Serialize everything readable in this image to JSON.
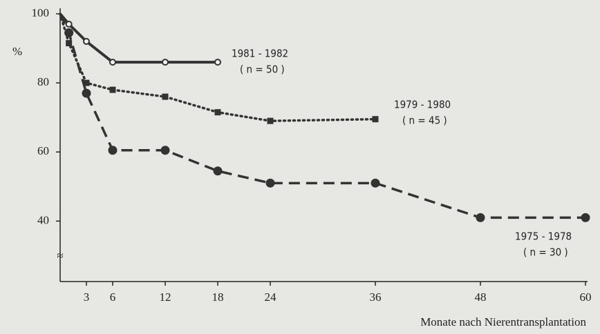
{
  "chart_data": {
    "type": "line",
    "y_label": "%",
    "x_label": "Monate nach Nierentransplantation",
    "y_axis_break": "≈",
    "xlim": [
      0,
      60
    ],
    "xticks": [
      3,
      6,
      12,
      18,
      24,
      36,
      48,
      60
    ],
    "ylim": [
      22.5,
      100
    ],
    "yticks": [
      40,
      60,
      80,
      100
    ],
    "series": [
      {
        "name": "1981 - 1982",
        "n_label": "( n = 50 )",
        "color": "#333333",
        "line_style": "solid",
        "marker": "circle-open",
        "x": [
          0,
          1,
          3,
          6,
          12,
          18
        ],
        "values": [
          100,
          97,
          92,
          86,
          86,
          86
        ]
      },
      {
        "name": "1979 - 1980",
        "n_label": "( n = 45 )",
        "color": "#333333",
        "line_style": "dotted",
        "marker": "square",
        "x": [
          0,
          1,
          3,
          6,
          12,
          18,
          24,
          36
        ],
        "values": [
          100,
          91.5,
          80,
          78,
          76,
          71.5,
          69,
          69.5
        ]
      },
      {
        "name": "1975 - 1978",
        "n_label": "( n = 30 )",
        "color": "#333333",
        "line_style": "dashed",
        "marker": "circle",
        "x": [
          0,
          1,
          3,
          6,
          12,
          18,
          24,
          36,
          48,
          60
        ],
        "values": [
          100,
          94.5,
          77,
          60.5,
          60.5,
          54.5,
          51,
          51,
          41,
          41
        ]
      }
    ]
  }
}
